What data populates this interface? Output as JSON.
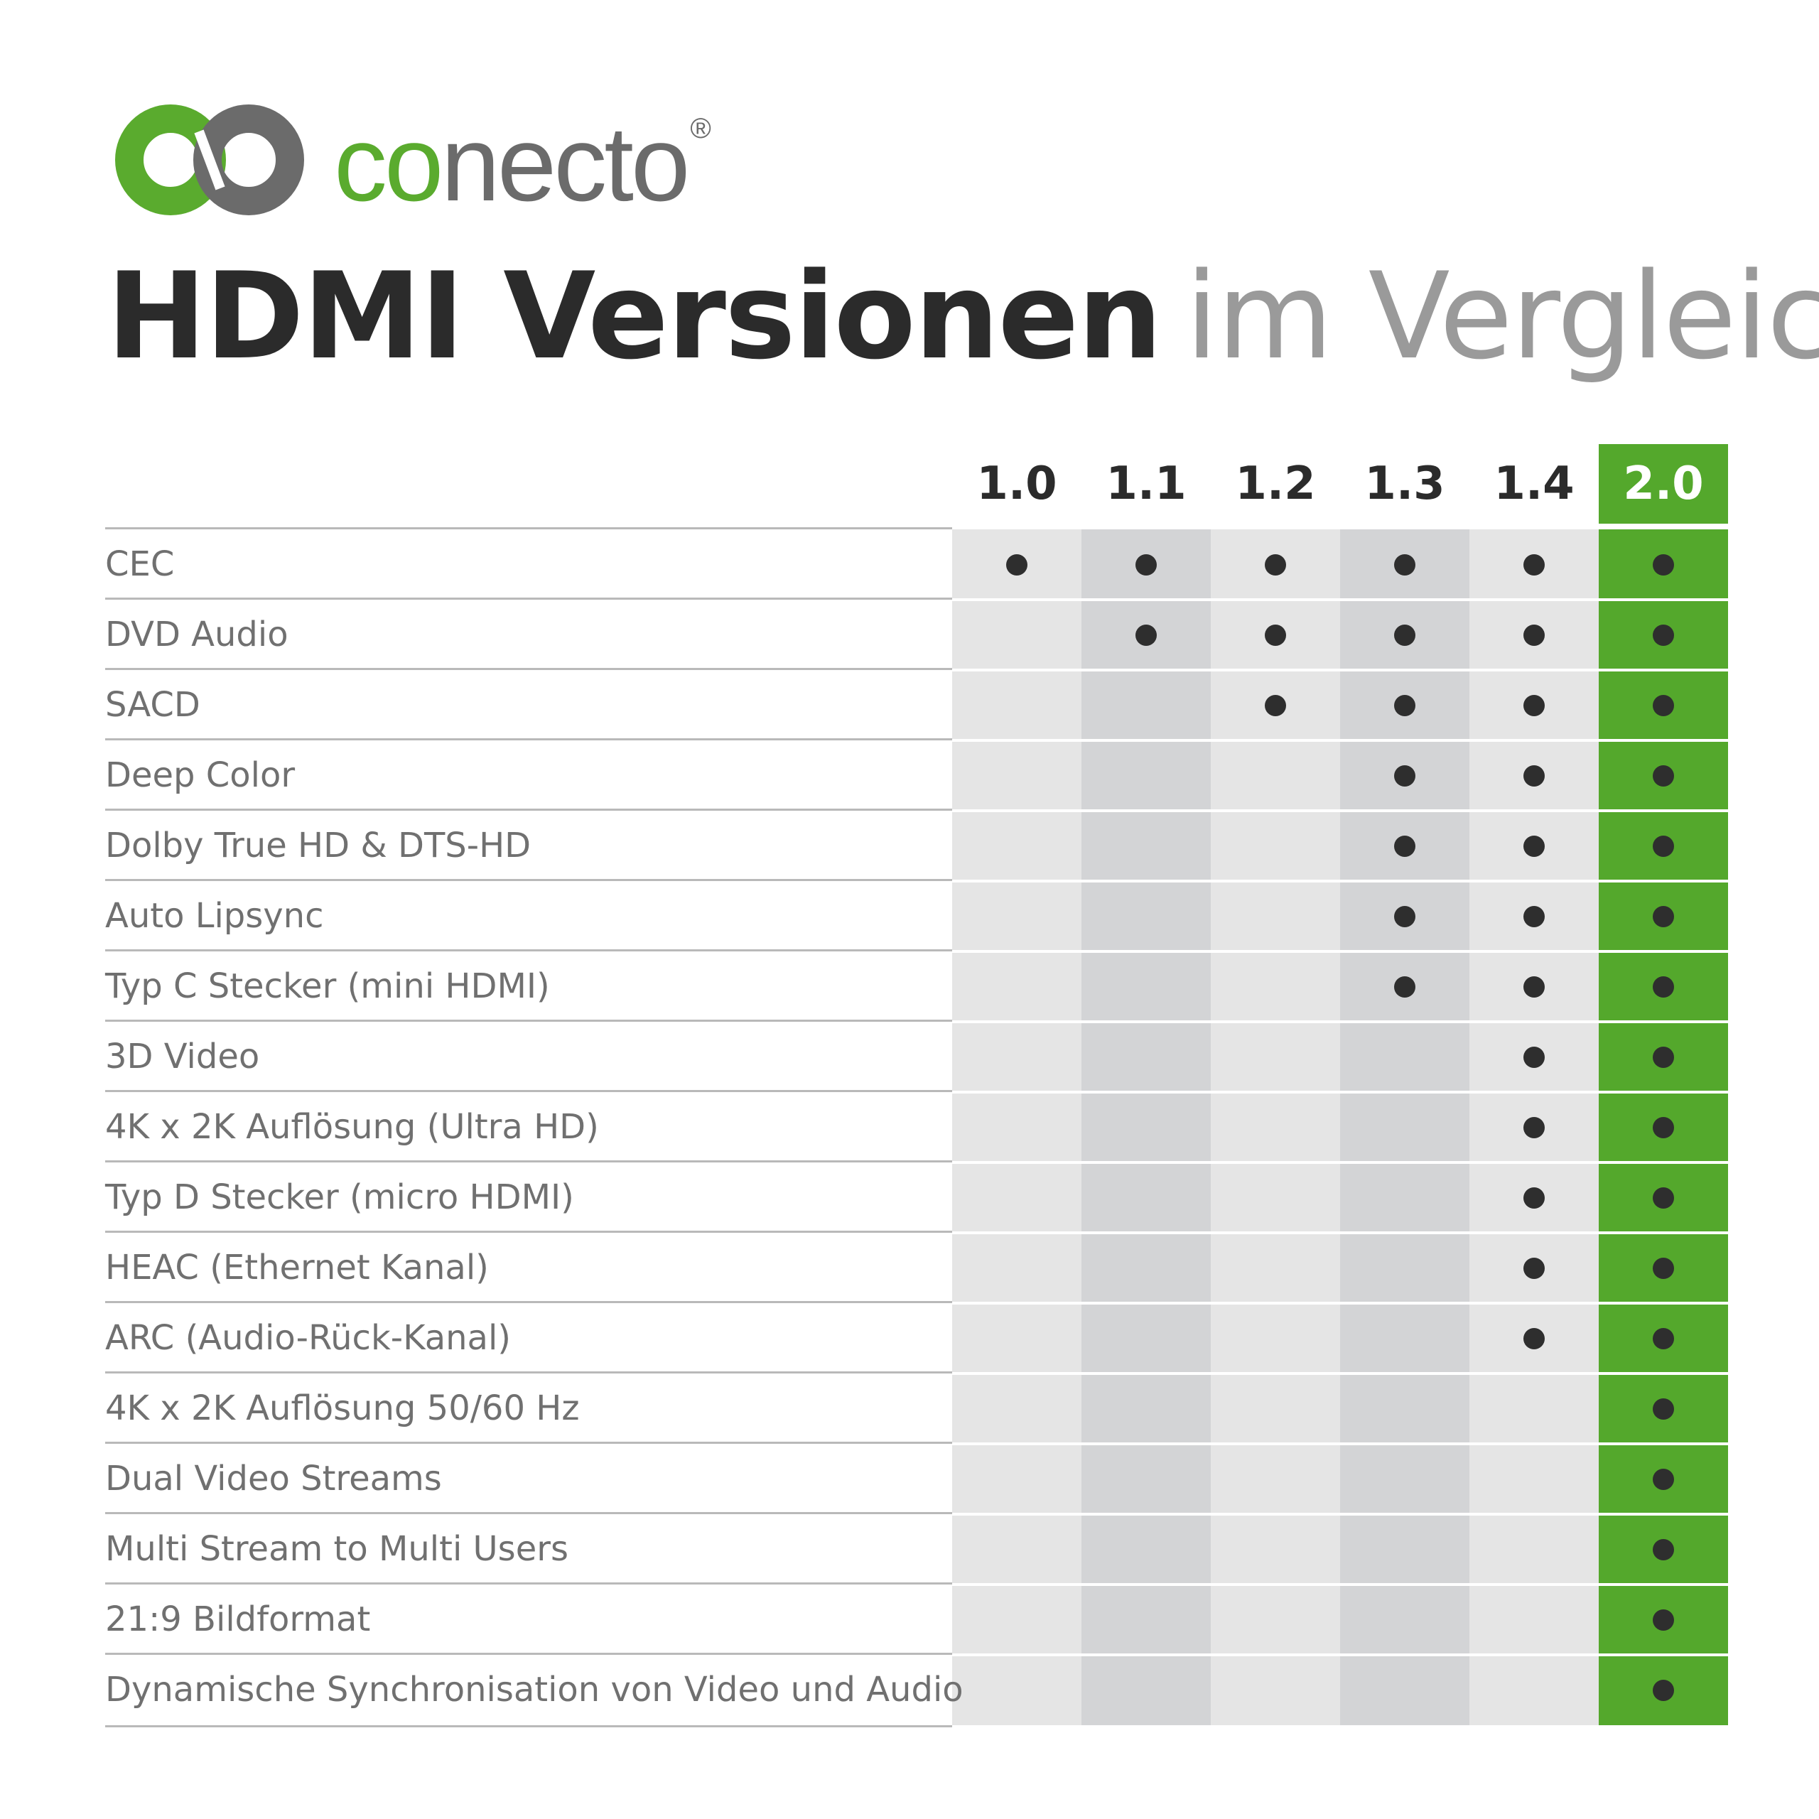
{
  "brand": {
    "name_part1": "co",
    "name_part2": "necto",
    "registered_mark": "®"
  },
  "title": {
    "bold": "HDMI Versionen",
    "light": "im Vergleich"
  },
  "colors": {
    "brand_green": "#54a82c",
    "text_dark": "#2b2b2b",
    "text_gray": "#707070",
    "col_light": "#e5e5e5",
    "col_dark": "#d3d4d6"
  },
  "versions": [
    "1.0",
    "1.1",
    "1.2",
    "1.3",
    "1.4",
    "2.0"
  ],
  "features": [
    {
      "label": "CEC",
      "support": [
        true,
        true,
        true,
        true,
        true,
        true
      ]
    },
    {
      "label": "DVD Audio",
      "support": [
        false,
        true,
        true,
        true,
        true,
        true
      ]
    },
    {
      "label": "SACD",
      "support": [
        false,
        false,
        true,
        true,
        true,
        true
      ]
    },
    {
      "label": "Deep Color",
      "support": [
        false,
        false,
        false,
        true,
        true,
        true
      ]
    },
    {
      "label": "Dolby True HD & DTS-HD",
      "support": [
        false,
        false,
        false,
        true,
        true,
        true
      ]
    },
    {
      "label": "Auto Lipsync",
      "support": [
        false,
        false,
        false,
        true,
        true,
        true
      ]
    },
    {
      "label": "Typ C Stecker (mini HDMI)",
      "support": [
        false,
        false,
        false,
        true,
        true,
        true
      ]
    },
    {
      "label": "3D Video",
      "support": [
        false,
        false,
        false,
        false,
        true,
        true
      ]
    },
    {
      "label": "4K x 2K Auflösung (Ultra HD)",
      "support": [
        false,
        false,
        false,
        false,
        true,
        true
      ]
    },
    {
      "label": "Typ D Stecker (micro HDMI)",
      "support": [
        false,
        false,
        false,
        false,
        true,
        true
      ]
    },
    {
      "label": "HEAC (Ethernet Kanal)",
      "support": [
        false,
        false,
        false,
        false,
        true,
        true
      ]
    },
    {
      "label": "ARC (Audio-Rück-Kanal)",
      "support": [
        false,
        false,
        false,
        false,
        true,
        true
      ]
    },
    {
      "label": "4K x 2K Auflösung 50/60 Hz",
      "support": [
        false,
        false,
        false,
        false,
        false,
        true
      ]
    },
    {
      "label": "Dual Video Streams",
      "support": [
        false,
        false,
        false,
        false,
        false,
        true
      ]
    },
    {
      "label": "Multi Stream to Multi Users",
      "support": [
        false,
        false,
        false,
        false,
        false,
        true
      ]
    },
    {
      "label": "21:9 Bildformat",
      "support": [
        false,
        false,
        false,
        false,
        false,
        true
      ]
    },
    {
      "label": "Dynamische Synchronisation von Video und Audio",
      "support": [
        false,
        false,
        false,
        false,
        false,
        true
      ]
    }
  ]
}
